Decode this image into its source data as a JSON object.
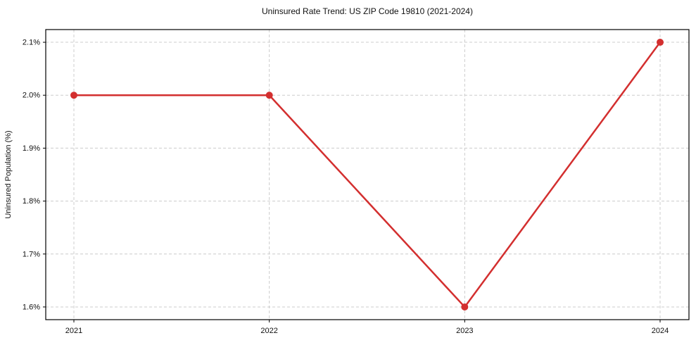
{
  "figure": {
    "background": "#ffffff",
    "text_color": "#111111",
    "spine_color": "#000000"
  },
  "chart_data": {
    "type": "line",
    "title": "Uninsured Rate Trend: US ZIP Code 19810 (2021-2024)",
    "xlabel": "",
    "ylabel": "Uninsured Population (%)",
    "categories": [
      "2021",
      "2022",
      "2023",
      "2024"
    ],
    "series": [
      {
        "name": "uninsured-rate",
        "values": [
          2.0,
          2.0,
          1.6,
          2.1
        ],
        "color": "#d32f2f"
      }
    ],
    "y_ticks": [
      1.6,
      1.7,
      1.8,
      1.9,
      2.0,
      2.1
    ],
    "y_tick_labels": [
      "1.6%",
      "1.7%",
      "1.8%",
      "1.9%",
      "2.0%",
      "2.1%"
    ],
    "ylim": [
      1.576,
      2.124
    ],
    "grid": true,
    "grid_style": "dashed",
    "grid_color": "#cccccc",
    "marker": "circle",
    "marker_size": 5,
    "line_width": 2.5,
    "legend_position": "none"
  }
}
